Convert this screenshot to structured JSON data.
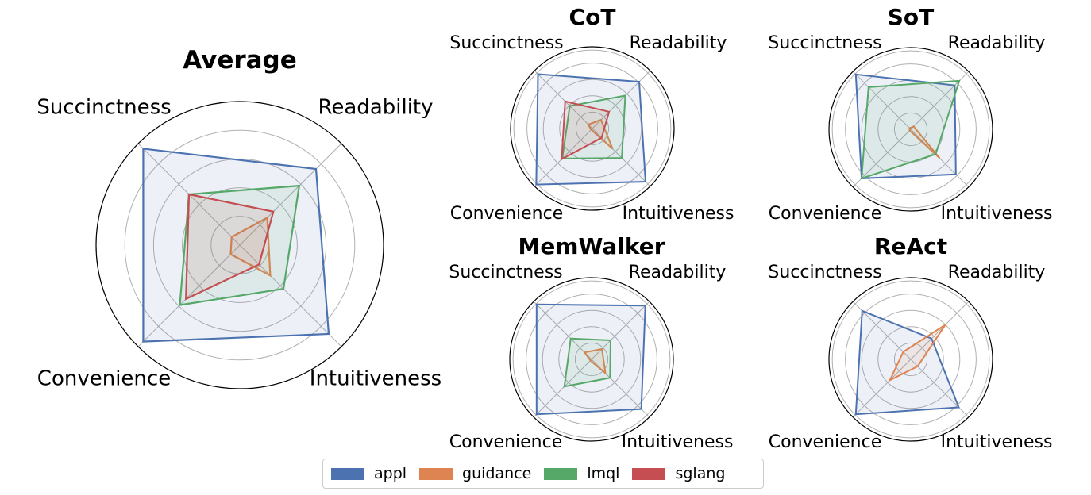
{
  "chart_data": [
    {
      "type": "radar",
      "title": "Average",
      "axes": [
        "Succinctness",
        "Readability",
        "Intuitiveness",
        "Convenience"
      ],
      "rlim": [
        0,
        1
      ],
      "grid": true,
      "series": [
        {
          "name": "appl",
          "values": [
            0.95,
            0.75,
            0.875,
            0.95
          ]
        },
        {
          "name": "guidance",
          "values": [
            0.08,
            0.27,
            0.3,
            0.09
          ]
        },
        {
          "name": "lmql",
          "values": [
            0.5,
            0.585,
            0.43,
            0.59
          ]
        },
        {
          "name": "sglang",
          "values": [
            0.5,
            0.33,
            0.19,
            0.53
          ]
        }
      ]
    },
    {
      "type": "radar",
      "title": "CoT",
      "axes": [
        "Succinctness",
        "Readability",
        "Intuitiveness",
        "Convenience"
      ],
      "rlim": [
        0,
        1
      ],
      "grid": true,
      "series": [
        {
          "name": "appl",
          "values": [
            0.94,
            0.81,
            0.92,
            0.97
          ]
        },
        {
          "name": "guidance",
          "values": [
            0.07,
            0.15,
            0.35,
            0.02
          ]
        },
        {
          "name": "lmql",
          "values": [
            0.39,
            0.57,
            0.51,
            0.52
          ]
        },
        {
          "name": "sglang",
          "values": [
            0.47,
            0.29,
            0.16,
            0.53
          ]
        }
      ]
    },
    {
      "type": "radar",
      "title": "SoT",
      "axes": [
        "Succinctness",
        "Readability",
        "Intuitiveness",
        "Convenience"
      ],
      "rlim": [
        0,
        1
      ],
      "grid": true,
      "series": [
        {
          "name": "appl",
          "values": [
            0.95,
            0.76,
            0.78,
            0.85
          ]
        },
        {
          "name": "guidance",
          "values": [
            0.02,
            0.05,
            0.5,
            0.02
          ]
        },
        {
          "name": "lmql",
          "values": [
            0.73,
            0.84,
            0.43,
            0.85
          ]
        }
      ]
    },
    {
      "type": "radar",
      "title": "MemWalker",
      "axes": [
        "Succinctness",
        "Readability",
        "Intuitiveness",
        "Convenience"
      ],
      "rlim": [
        0,
        1
      ],
      "grid": true,
      "series": [
        {
          "name": "appl",
          "values": [
            0.95,
            0.93,
            0.86,
            0.95
          ]
        },
        {
          "name": "guidance",
          "values": [
            0.12,
            0.18,
            0.24,
            0.02
          ]
        },
        {
          "name": "lmql",
          "values": [
            0.36,
            0.33,
            0.32,
            0.47
          ]
        }
      ]
    },
    {
      "type": "radar",
      "title": "ReAct",
      "axes": [
        "Succinctness",
        "Readability",
        "Intuitiveness",
        "Convenience"
      ],
      "rlim": [
        0,
        1
      ],
      "grid": true,
      "series": [
        {
          "name": "appl",
          "values": [
            0.84,
            0.36,
            0.83,
            0.95
          ]
        },
        {
          "name": "guidance",
          "values": [
            0.13,
            0.6,
            0.12,
            0.36
          ]
        }
      ]
    }
  ],
  "legend": {
    "placement": "bottom-center",
    "entries": [
      {
        "name": "appl",
        "color": "#4c72b0"
      },
      {
        "name": "guidance",
        "color": "#dd8452"
      },
      {
        "name": "lmql",
        "color": "#55a868"
      },
      {
        "name": "sglang",
        "color": "#c44e52"
      }
    ]
  }
}
